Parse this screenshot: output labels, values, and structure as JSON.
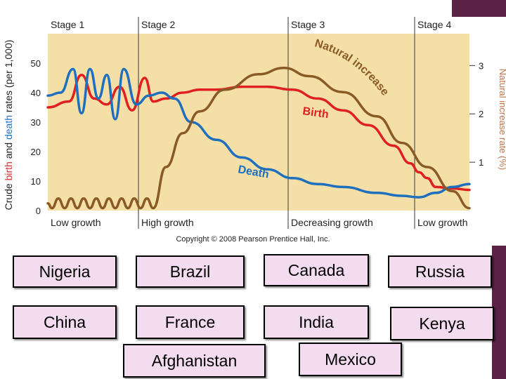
{
  "chart_data": {
    "type": "line",
    "stages": [
      "Stage 1",
      "Stage 2",
      "Stage 3",
      "Stage 4"
    ],
    "phases": [
      "Low growth",
      "High growth",
      "Decreasing growth",
      "Low growth"
    ],
    "left_axis": {
      "label_parts": [
        {
          "text": "Crude ",
          "color": "#222222"
        },
        {
          "text": "birth",
          "color": "#d42a2a"
        },
        {
          "text": " and ",
          "color": "#222222"
        },
        {
          "text": "death",
          "color": "#1f6fbf"
        },
        {
          "text": " rates (per 1,000)",
          "color": "#222222"
        }
      ],
      "ticks": [
        0,
        10,
        20,
        30,
        40,
        50
      ],
      "range": [
        0,
        60
      ]
    },
    "right_axis": {
      "label": "Natural increase rate (%)",
      "label_color": "#c0734d",
      "ticks": [
        1,
        2,
        3
      ],
      "range": [
        0,
        3
      ]
    },
    "series": [
      {
        "name": "Birth",
        "color": "#e02020",
        "values": [
          [
            0,
            35
          ],
          [
            5,
            37
          ],
          [
            8,
            46
          ],
          [
            11,
            38
          ],
          [
            14,
            36
          ],
          [
            17,
            42
          ],
          [
            20,
            34
          ],
          [
            23,
            45
          ],
          [
            25,
            37
          ],
          [
            28,
            38
          ],
          [
            32,
            40
          ],
          [
            36,
            41
          ],
          [
            40,
            41
          ],
          [
            46,
            42
          ],
          [
            52,
            42
          ],
          [
            58,
            41
          ],
          [
            64,
            38
          ],
          [
            70,
            34
          ],
          [
            76,
            29
          ],
          [
            82,
            22
          ],
          [
            86,
            16
          ],
          [
            88,
            13
          ],
          [
            90,
            11
          ],
          [
            92,
            8
          ],
          [
            96,
            7.5
          ],
          [
            100,
            7
          ]
        ]
      },
      {
        "name": "Death",
        "color": "#1f6fbf",
        "values": [
          [
            0,
            39
          ],
          [
            3,
            40
          ],
          [
            6,
            48
          ],
          [
            8,
            33
          ],
          [
            10,
            48
          ],
          [
            12,
            38
          ],
          [
            14,
            46
          ],
          [
            16,
            31
          ],
          [
            18,
            48
          ],
          [
            21,
            36
          ],
          [
            24,
            39
          ],
          [
            27,
            40
          ],
          [
            30,
            38
          ],
          [
            34,
            30
          ],
          [
            40,
            24
          ],
          [
            46,
            18
          ],
          [
            52,
            14
          ],
          [
            58,
            11
          ],
          [
            64,
            9
          ],
          [
            70,
            8
          ],
          [
            78,
            6
          ],
          [
            84,
            5
          ],
          [
            88,
            4.5
          ],
          [
            92,
            6
          ],
          [
            96,
            8
          ],
          [
            100,
            9
          ]
        ]
      },
      {
        "name": "Natural increase",
        "color": "#8b5a24",
        "values": [
          [
            0,
            0.15
          ],
          [
            1,
            0.05
          ],
          [
            2.5,
            0.25
          ],
          [
            4,
            0.05
          ],
          [
            5.5,
            0.25
          ],
          [
            7,
            0.05
          ],
          [
            8.5,
            0.25
          ],
          [
            10,
            0.05
          ],
          [
            11.5,
            0.25
          ],
          [
            13,
            0.05
          ],
          [
            14.5,
            0.25
          ],
          [
            16,
            0.05
          ],
          [
            17.5,
            0.25
          ],
          [
            19,
            0.05
          ],
          [
            20.5,
            0.25
          ],
          [
            22,
            0.05
          ],
          [
            23.5,
            0.25
          ],
          [
            25,
            0.05
          ],
          [
            28,
            0.9
          ],
          [
            32,
            1.6
          ],
          [
            36,
            2.05
          ],
          [
            42,
            2.5
          ],
          [
            50,
            2.82
          ],
          [
            56,
            2.95
          ],
          [
            62,
            2.78
          ],
          [
            70,
            2.45
          ],
          [
            78,
            1.95
          ],
          [
            84,
            1.4
          ],
          [
            90,
            0.9
          ],
          [
            96,
            0.4
          ],
          [
            100,
            0.05
          ]
        ]
      }
    ],
    "annotations": [
      "Birth",
      "Death",
      "Natural increase"
    ],
    "copyright": "Copyright © 2008 Pearson Prentice Hall, Inc."
  },
  "countries": [
    "Nigeria",
    "Brazil",
    "Canada",
    "Russia",
    "China",
    "France",
    "India",
    "Kenya",
    "Afghanistan",
    "Mexico"
  ]
}
